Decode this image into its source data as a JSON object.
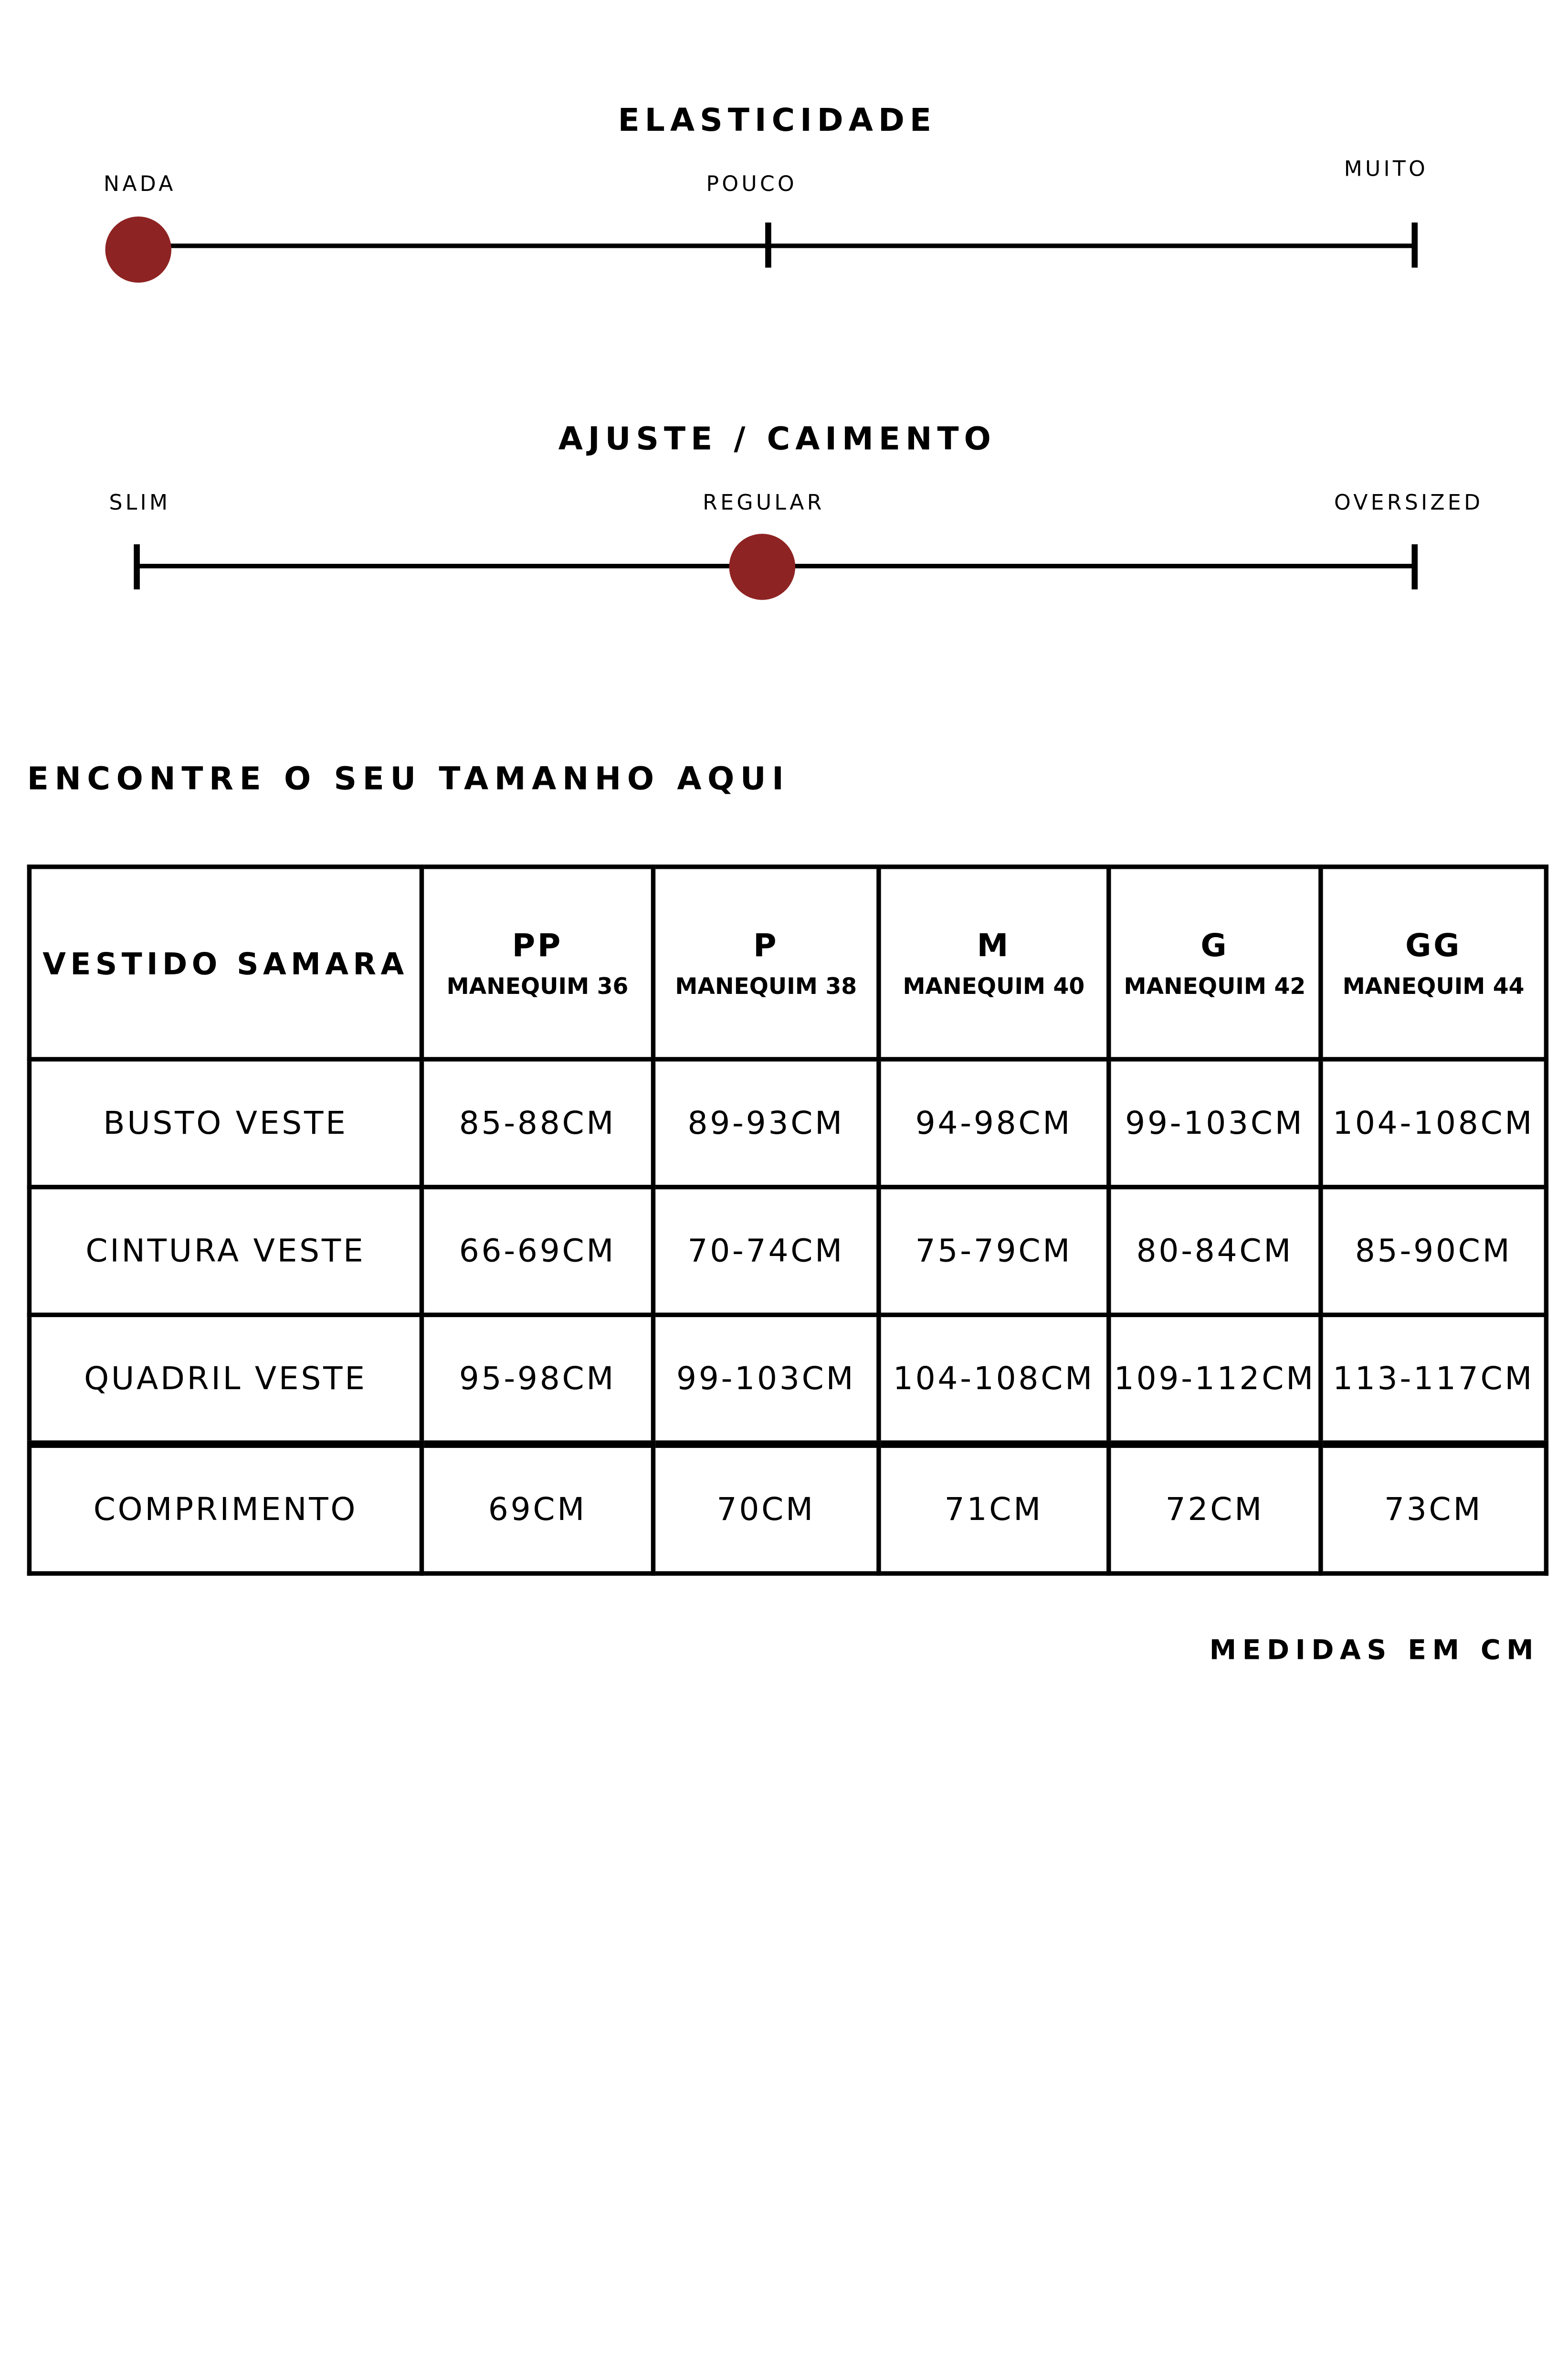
{
  "accent_color": "#8e2323",
  "elasticidade": {
    "title": "ELASTICIDADE",
    "labels": [
      "NADA",
      "POUCO",
      "MUITO"
    ],
    "selected": "NADA"
  },
  "ajuste": {
    "title": "AJUSTE / CAIMENTO",
    "labels": [
      "SLIM",
      "REGULAR",
      "OVERSIZED"
    ],
    "selected": "REGULAR"
  },
  "size_section": {
    "heading": "ENCONTRE O SEU TAMANHO AQUI",
    "table": {
      "corner": "VESTIDO SAMARA",
      "columns": [
        {
          "size": "PP",
          "mannequin": "MANEQUIM 36"
        },
        {
          "size": "P",
          "mannequin": "MANEQUIM 38"
        },
        {
          "size": "M",
          "mannequin": "MANEQUIM 40"
        },
        {
          "size": "G",
          "mannequin": "MANEQUIM 42"
        },
        {
          "size": "GG",
          "mannequin": "MANEQUIM 44"
        }
      ],
      "rows": [
        {
          "label": "BUSTO VESTE",
          "values": [
            "85-88CM",
            "89-93CM",
            "94-98CM",
            "99-103CM",
            "104-108CM"
          ]
        },
        {
          "label": "CINTURA VESTE",
          "values": [
            "66-69CM",
            "70-74CM",
            "75-79CM",
            "80-84CM",
            "85-90CM"
          ]
        },
        {
          "label": "QUADRIL VESTE",
          "values": [
            "95-98CM",
            "99-103CM",
            "104-108CM",
            "109-112CM",
            "113-117CM"
          ]
        },
        {
          "label": "COMPRIMENTO",
          "values": [
            "69CM",
            "70CM",
            "71CM",
            "72CM",
            "73CM"
          ]
        }
      ]
    },
    "footnote": "MEDIDAS EM CM"
  }
}
